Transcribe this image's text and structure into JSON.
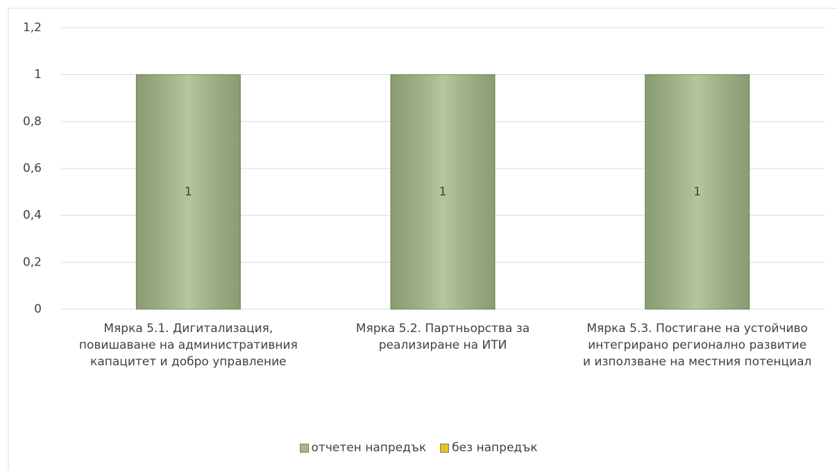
{
  "chart_data": {
    "type": "bar",
    "categories": [
      "Мярка 5.1. Дигитализация, повишаване на административния капацитет и добро управление",
      "Мярка 5.2. Партньорства за реализиране на ИТИ",
      "Мярка 5.3. Постигане на устойчиво интегрирано регионално развитие и използване на местния потенциал"
    ],
    "series": [
      {
        "name": "отчетен напредък",
        "color": "#a3b887",
        "values": [
          1,
          1,
          1
        ]
      },
      {
        "name": "без напредък",
        "color": "#e8c21a",
        "values": [
          0,
          0,
          0
        ]
      }
    ],
    "stacked": true,
    "ylim": [
      0,
      1.2
    ],
    "yticks": [
      0,
      {
        "value": 0.2,
        "label": "0,2"
      },
      {
        "value": 0.4,
        "label": "0,4"
      },
      {
        "value": 0.6,
        "label": "0,6"
      },
      {
        "value": 0.8,
        "label": "0,8"
      },
      1,
      {
        "value": 1.2,
        "label": "1,2"
      }
    ],
    "grid": true,
    "legend": "bottom"
  }
}
